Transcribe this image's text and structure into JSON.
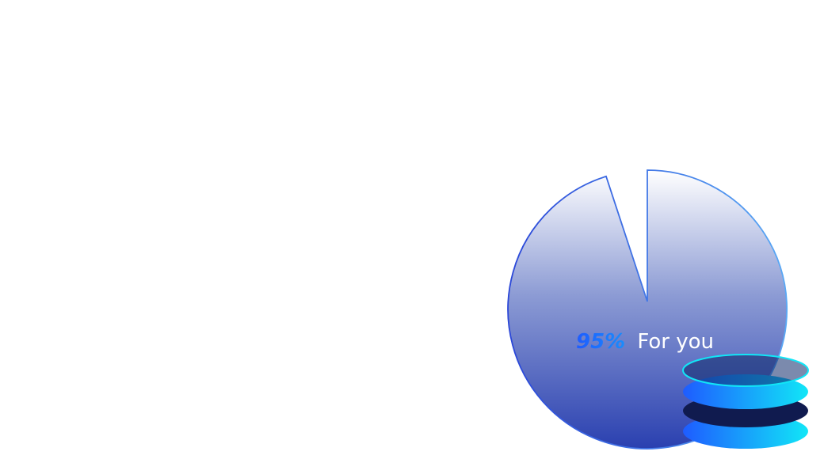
{
  "caption": {
    "percent": "95%",
    "text": "For you"
  },
  "colors": {
    "pie_top": "#ffffff",
    "pie_bottom": "#2a40b0",
    "pie_stroke": "#2f5ee0",
    "accent_blue": "#1e5cff",
    "accent_cyan": "#11e6f7",
    "disc_dark": "#101b4f"
  },
  "icons": {
    "coin_stack": "coin-stack-icon"
  }
}
